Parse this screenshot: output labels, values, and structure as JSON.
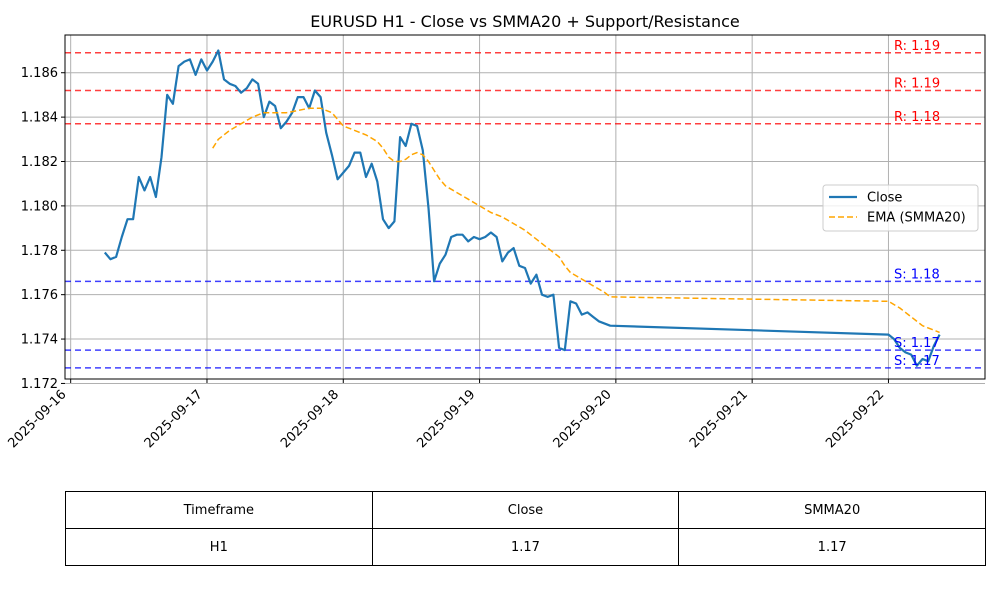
{
  "chart_data": {
    "type": "line",
    "title": "EURUSD H1 - Close vs SMMA20 + Support/Resistance",
    "xlabel": "",
    "ylabel": "",
    "xlim": [
      "2025-09-15T23:00",
      "2025-09-22T17:00"
    ],
    "ylim": [
      1.1722,
      1.1877
    ],
    "x_ticks": [
      "2025-09-16",
      "2025-09-17",
      "2025-09-18",
      "2025-09-19",
      "2025-09-20",
      "2025-09-21",
      "2025-09-22"
    ],
    "y_ticks": [
      1.172,
      1.174,
      1.176,
      1.178,
      1.18,
      1.182,
      1.184,
      1.186
    ],
    "y_tick_labels": [
      "1.172",
      "1.174",
      "1.176",
      "1.178",
      "1.180",
      "1.182",
      "1.184",
      "1.186"
    ],
    "grid": true,
    "legend_position": "right",
    "series": [
      {
        "name": "Close",
        "color": "#1f77b4",
        "style": "solid",
        "points": [
          [
            "2025-09-16T06:00",
            1.1779
          ],
          [
            "2025-09-16T07:00",
            1.1776
          ],
          [
            "2025-09-16T08:00",
            1.1777
          ],
          [
            "2025-09-16T09:00",
            1.1786
          ],
          [
            "2025-09-16T10:00",
            1.1794
          ],
          [
            "2025-09-16T11:00",
            1.1794
          ],
          [
            "2025-09-16T12:00",
            1.1813
          ],
          [
            "2025-09-16T13:00",
            1.1807
          ],
          [
            "2025-09-16T14:00",
            1.1813
          ],
          [
            "2025-09-16T15:00",
            1.1804
          ],
          [
            "2025-09-16T16:00",
            1.1822
          ],
          [
            "2025-09-16T17:00",
            1.185
          ],
          [
            "2025-09-16T18:00",
            1.1846
          ],
          [
            "2025-09-16T19:00",
            1.1863
          ],
          [
            "2025-09-16T20:00",
            1.1865
          ],
          [
            "2025-09-16T21:00",
            1.1866
          ],
          [
            "2025-09-16T22:00",
            1.1859
          ],
          [
            "2025-09-16T23:00",
            1.1866
          ],
          [
            "2025-09-17T00:00",
            1.1861
          ],
          [
            "2025-09-17T01:00",
            1.1865
          ],
          [
            "2025-09-17T02:00",
            1.187
          ],
          [
            "2025-09-17T03:00",
            1.1857
          ],
          [
            "2025-09-17T04:00",
            1.1855
          ],
          [
            "2025-09-17T05:00",
            1.1854
          ],
          [
            "2025-09-17T06:00",
            1.1851
          ],
          [
            "2025-09-17T07:00",
            1.1853
          ],
          [
            "2025-09-17T08:00",
            1.1857
          ],
          [
            "2025-09-17T09:00",
            1.1855
          ],
          [
            "2025-09-17T10:00",
            1.184
          ],
          [
            "2025-09-17T11:00",
            1.1847
          ],
          [
            "2025-09-17T12:00",
            1.1845
          ],
          [
            "2025-09-17T13:00",
            1.1835
          ],
          [
            "2025-09-17T14:00",
            1.1838
          ],
          [
            "2025-09-17T15:00",
            1.1842
          ],
          [
            "2025-09-17T16:00",
            1.1849
          ],
          [
            "2025-09-17T17:00",
            1.1849
          ],
          [
            "2025-09-17T18:00",
            1.1844
          ],
          [
            "2025-09-17T19:00",
            1.1852
          ],
          [
            "2025-09-17T20:00",
            1.1849
          ],
          [
            "2025-09-17T21:00",
            1.1833
          ],
          [
            "2025-09-17T22:00",
            1.1823
          ],
          [
            "2025-09-17T23:00",
            1.1812
          ],
          [
            "2025-09-18T00:00",
            1.1815
          ],
          [
            "2025-09-18T01:00",
            1.1818
          ],
          [
            "2025-09-18T02:00",
            1.1824
          ],
          [
            "2025-09-18T03:00",
            1.1824
          ],
          [
            "2025-09-18T04:00",
            1.1813
          ],
          [
            "2025-09-18T05:00",
            1.1819
          ],
          [
            "2025-09-18T06:00",
            1.1811
          ],
          [
            "2025-09-18T07:00",
            1.1794
          ],
          [
            "2025-09-18T08:00",
            1.179
          ],
          [
            "2025-09-18T09:00",
            1.1793
          ],
          [
            "2025-09-18T10:00",
            1.1831
          ],
          [
            "2025-09-18T11:00",
            1.1827
          ],
          [
            "2025-09-18T12:00",
            1.1837
          ],
          [
            "2025-09-18T13:00",
            1.1836
          ],
          [
            "2025-09-18T14:00",
            1.1825
          ],
          [
            "2025-09-18T15:00",
            1.1799
          ],
          [
            "2025-09-18T16:00",
            1.1766
          ],
          [
            "2025-09-18T17:00",
            1.1774
          ],
          [
            "2025-09-18T18:00",
            1.1778
          ],
          [
            "2025-09-18T19:00",
            1.1786
          ],
          [
            "2025-09-18T20:00",
            1.1787
          ],
          [
            "2025-09-18T21:00",
            1.1787
          ],
          [
            "2025-09-18T22:00",
            1.1784
          ],
          [
            "2025-09-18T23:00",
            1.1786
          ],
          [
            "2025-09-19T00:00",
            1.1785
          ],
          [
            "2025-09-19T01:00",
            1.1786
          ],
          [
            "2025-09-19T02:00",
            1.1788
          ],
          [
            "2025-09-19T03:00",
            1.1786
          ],
          [
            "2025-09-19T04:00",
            1.1775
          ],
          [
            "2025-09-19T05:00",
            1.1779
          ],
          [
            "2025-09-19T06:00",
            1.1781
          ],
          [
            "2025-09-19T07:00",
            1.1773
          ],
          [
            "2025-09-19T08:00",
            1.1772
          ],
          [
            "2025-09-19T09:00",
            1.1765
          ],
          [
            "2025-09-19T10:00",
            1.1769
          ],
          [
            "2025-09-19T11:00",
            1.176
          ],
          [
            "2025-09-19T12:00",
            1.1759
          ],
          [
            "2025-09-19T13:00",
            1.176
          ],
          [
            "2025-09-19T14:00",
            1.1736
          ],
          [
            "2025-09-19T15:00",
            1.1735
          ],
          [
            "2025-09-19T16:00",
            1.1757
          ],
          [
            "2025-09-19T17:00",
            1.1756
          ],
          [
            "2025-09-19T18:00",
            1.1751
          ],
          [
            "2025-09-19T19:00",
            1.1752
          ],
          [
            "2025-09-19T20:00",
            1.175
          ],
          [
            "2025-09-19T21:00",
            1.1748
          ],
          [
            "2025-09-19T23:00",
            1.1746
          ],
          [
            "2025-09-22T00:00",
            1.1742
          ],
          [
            "2025-09-22T01:00",
            1.174
          ],
          [
            "2025-09-22T02:00",
            1.1736
          ],
          [
            "2025-09-22T03:00",
            1.1734
          ],
          [
            "2025-09-22T04:00",
            1.1733
          ],
          [
            "2025-09-22T05:00",
            1.1728
          ],
          [
            "2025-09-22T06:00",
            1.1731
          ],
          [
            "2025-09-22T07:00",
            1.173
          ],
          [
            "2025-09-22T08:00",
            1.1737
          ],
          [
            "2025-09-22T09:00",
            1.1742
          ]
        ]
      },
      {
        "name": "EMA (SMMA20)",
        "color": "#ffa500",
        "style": "dashed",
        "points": [
          [
            "2025-09-17T01:00",
            1.1826
          ],
          [
            "2025-09-17T02:00",
            1.183
          ],
          [
            "2025-09-17T04:00",
            1.1834
          ],
          [
            "2025-09-17T06:00",
            1.1837
          ],
          [
            "2025-09-17T08:00",
            1.184
          ],
          [
            "2025-09-17T10:00",
            1.1842
          ],
          [
            "2025-09-17T12:00",
            1.1842
          ],
          [
            "2025-09-17T14:00",
            1.1842
          ],
          [
            "2025-09-17T16:00",
            1.1843
          ],
          [
            "2025-09-17T18:00",
            1.1844
          ],
          [
            "2025-09-17T20:00",
            1.1844
          ],
          [
            "2025-09-17T22:00",
            1.1842
          ],
          [
            "2025-09-18T00:00",
            1.1836
          ],
          [
            "2025-09-18T02:00",
            1.1834
          ],
          [
            "2025-09-18T04:00",
            1.1832
          ],
          [
            "2025-09-18T06:00",
            1.1829
          ],
          [
            "2025-09-18T07:00",
            1.1826
          ],
          [
            "2025-09-18T08:00",
            1.1822
          ],
          [
            "2025-09-18T09:00",
            1.182
          ],
          [
            "2025-09-18T10:00",
            1.182
          ],
          [
            "2025-09-18T11:00",
            1.1821
          ],
          [
            "2025-09-18T12:00",
            1.1823
          ],
          [
            "2025-09-18T13:00",
            1.1824
          ],
          [
            "2025-09-18T14:00",
            1.1823
          ],
          [
            "2025-09-18T15:00",
            1.182
          ],
          [
            "2025-09-18T16:00",
            1.1816
          ],
          [
            "2025-09-18T17:00",
            1.1812
          ],
          [
            "2025-09-18T18:00",
            1.1809
          ],
          [
            "2025-09-18T20:00",
            1.1806
          ],
          [
            "2025-09-18T22:00",
            1.1803
          ],
          [
            "2025-09-19T00:00",
            1.18
          ],
          [
            "2025-09-19T02:00",
            1.1797
          ],
          [
            "2025-09-19T04:00",
            1.1795
          ],
          [
            "2025-09-19T06:00",
            1.1792
          ],
          [
            "2025-09-19T08:00",
            1.1789
          ],
          [
            "2025-09-19T10:00",
            1.1785
          ],
          [
            "2025-09-19T12:00",
            1.1781
          ],
          [
            "2025-09-19T14:00",
            1.1777
          ],
          [
            "2025-09-19T15:00",
            1.1773
          ],
          [
            "2025-09-19T16:00",
            1.177
          ],
          [
            "2025-09-19T18:00",
            1.1767
          ],
          [
            "2025-09-19T20:00",
            1.1764
          ],
          [
            "2025-09-19T22:00",
            1.1761
          ],
          [
            "2025-09-19T23:00",
            1.1759
          ],
          [
            "2025-09-22T00:00",
            1.1757
          ],
          [
            "2025-09-22T02:00",
            1.1754
          ],
          [
            "2025-09-22T04:00",
            1.175
          ],
          [
            "2025-09-22T06:00",
            1.1746
          ],
          [
            "2025-09-22T08:00",
            1.1744
          ],
          [
            "2025-09-22T09:00",
            1.1743
          ]
        ]
      }
    ],
    "levels": [
      {
        "kind": "resistance",
        "value": 1.1869,
        "label": "R: 1.19",
        "color": "#ff0000"
      },
      {
        "kind": "resistance",
        "value": 1.1852,
        "label": "R: 1.19",
        "color": "#ff0000"
      },
      {
        "kind": "resistance",
        "value": 1.1837,
        "label": "R: 1.18",
        "color": "#ff0000"
      },
      {
        "kind": "support",
        "value": 1.1766,
        "label": "S: 1.18",
        "color": "#0000ff"
      },
      {
        "kind": "support",
        "value": 1.1735,
        "label": "S: 1.17",
        "color": "#0000ff"
      },
      {
        "kind": "support",
        "value": 1.1727,
        "label": "S: 1.17",
        "color": "#0000ff"
      }
    ]
  },
  "table": {
    "headers": [
      "Timeframe",
      "Close",
      "SMMA20"
    ],
    "rows": [
      [
        "H1",
        "1.17",
        "1.17"
      ]
    ]
  }
}
